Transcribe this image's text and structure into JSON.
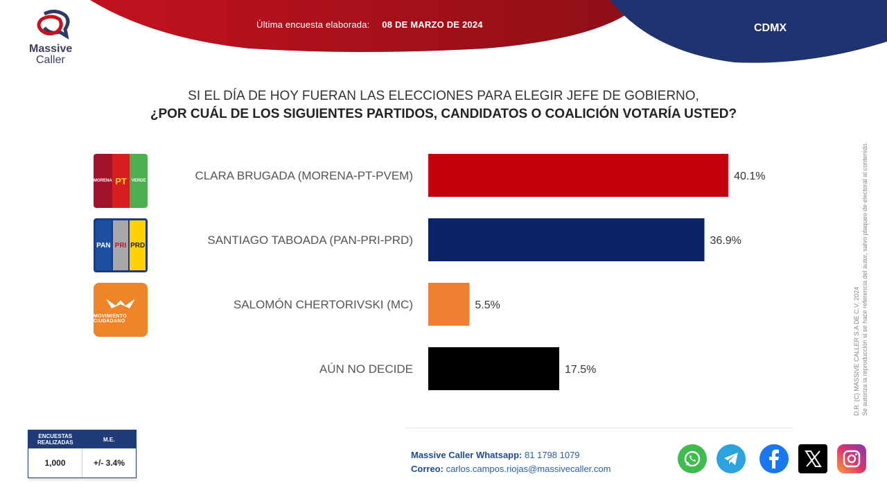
{
  "header": {
    "date_label": "Última encuesta elaborada:",
    "date_value": "08 DE MARZO DE 2024",
    "region": "CDMX",
    "colors": {
      "red": "#b5121b",
      "navy": "#1e3370"
    }
  },
  "brand": {
    "name_line1": "Massive",
    "name_line2": "Caller"
  },
  "question": {
    "line1": "SI EL DÍA DE HOY FUERAN LAS ELECCIONES PARA ELEGIR JEFE DE GOBIERNO,",
    "line2": "¿POR CUÁL DE LOS SIGUIENTES PARTIDOS, CANDIDATOS  O COALICIÓN VOTARÍA USTED?"
  },
  "party_logos": {
    "morena": [
      "MORENA",
      "PT",
      "VERDE"
    ],
    "fxm": [
      "PAN",
      "PRI",
      "PRD"
    ],
    "mc": "MOVIMIENTO CIUDADANO"
  },
  "chart_data": {
    "type": "bar",
    "orientation": "horizontal",
    "categories": [
      "CLARA BRUGADA (MORENA-PT-PVEM)",
      "SANTIAGO TABOADA (PAN-PRI-PRD)",
      "SALOMÓN CHERTORIVSKI (MC)",
      "AÚN NO DECIDE"
    ],
    "values": [
      40.1,
      36.9,
      5.5,
      17.5
    ],
    "value_labels": [
      "40.1%",
      "36.9%",
      "5.5%",
      "17.5%"
    ],
    "colors": [
      "#c4000c",
      "#0c2368",
      "#ef8033",
      "#000000"
    ],
    "xlim": [
      0,
      50
    ],
    "grid": false
  },
  "side_note": {
    "line1": "D.R. (C) MASSIVE CALLER S.A DE C.V. 2024",
    "line2": "Se autoriza la reproducción si se hace referencia del autor, salvo plaqueo de electoral al contenido."
  },
  "sample": {
    "col1_header": "ENCUESTAS REALIZADAS",
    "col2_header": "M.E.",
    "col1_value": "1,000",
    "col2_value": "+/- 3.4%"
  },
  "contact": {
    "whatsapp_label": "Massive Caller Whatsapp:",
    "whatsapp_value": "81 1798 1079",
    "email_label": "Correo:",
    "email_value": "carlos.campos.riojas@massivecaller.com"
  },
  "social": [
    "whatsapp-icon",
    "telegram-icon",
    "facebook-icon",
    "x-icon",
    "instagram-icon"
  ]
}
